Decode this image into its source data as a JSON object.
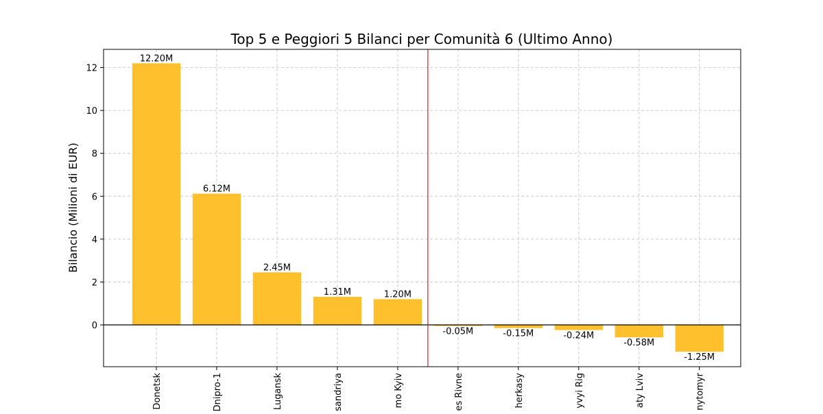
{
  "chart_data": {
    "type": "bar",
    "title": "Top 5 e Peggiori 5 Bilanci per Comunità 6 (Ultimo Anno)",
    "xlabel": "",
    "ylabel": "Bilancio (Milioni di EUR)",
    "categories": [
      "Donetsk",
      "Dnipro-1",
      "Lugansk",
      "Oleksandriya",
      "Arsenal Dynamo Kyiv",
      "Veres Rivne",
      "Cherkasy",
      "Kryvyi Rig",
      "Karpaty Lviv",
      "Zhytomyr"
    ],
    "tick_labels": [
      "Donetsk",
      "Dnipro-1",
      "Lugansk",
      "sandriya",
      "mo Kyiv",
      "es Rivne",
      "herkasy",
      "yvyi Rig",
      "aty Lviv",
      "nytomyr"
    ],
    "values": [
      12.2,
      6.12,
      2.45,
      1.31,
      1.2,
      -0.05,
      -0.15,
      -0.24,
      -0.58,
      -1.25
    ],
    "value_labels": [
      "12.20M",
      "6.12M",
      "2.45M",
      "1.31M",
      "1.20M",
      "-0.05M",
      "-0.15M",
      "-0.24M",
      "-0.58M",
      "-1.25M"
    ],
    "ylim": [
      -1.95,
      12.85
    ],
    "yticks": [
      0,
      2,
      4,
      6,
      8,
      10,
      12
    ],
    "bar_color": "#FFC02E",
    "separator_color": "#E8141C",
    "separator_after_index": 4,
    "grid": true,
    "legend": "none"
  }
}
